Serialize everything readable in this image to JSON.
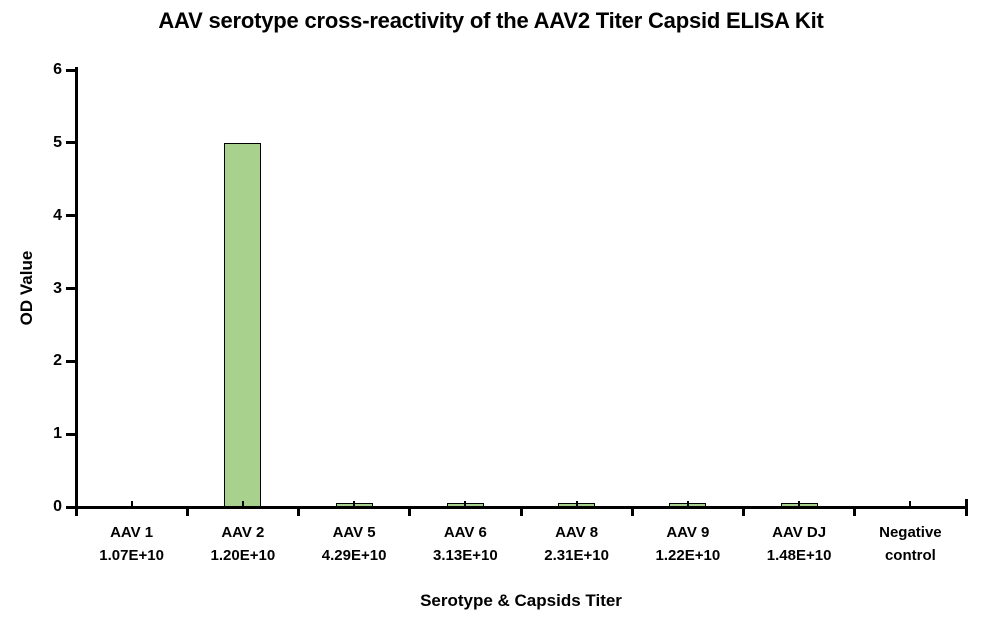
{
  "page": {
    "background": "#ffffff"
  },
  "chart_data": {
    "type": "bar",
    "title": "AAV serotype cross-reactivity of the AAV2 Titer Capsid ELISA Kit",
    "xlabel": "Serotype & Capsids Titer",
    "ylabel": "OD Value",
    "ylim": [
      0,
      6
    ],
    "yticks": [
      0,
      1,
      2,
      3,
      4,
      5,
      6
    ],
    "grid": false,
    "legend": "none",
    "bar_fill": "#A9D18E",
    "bar_border": "#000000",
    "axis_color": "#000000",
    "text_color": "#000000",
    "categories": [
      {
        "label_lines": [
          "AAV 1",
          "1.07E+10"
        ],
        "od_value": 0.0
      },
      {
        "label_lines": [
          "AAV 2",
          "1.20E+10"
        ],
        "od_value": 5.0
      },
      {
        "label_lines": [
          "AAV 5",
          "4.29E+10"
        ],
        "od_value": 0.02
      },
      {
        "label_lines": [
          "AAV 6",
          "3.13E+10"
        ],
        "od_value": 0.02
      },
      {
        "label_lines": [
          "AAV 8",
          "2.31E+10"
        ],
        "od_value": 0.02
      },
      {
        "label_lines": [
          "AAV 9",
          "1.22E+10"
        ],
        "od_value": 0.02
      },
      {
        "label_lines": [
          "AAV DJ",
          "1.48E+10"
        ],
        "od_value": 0.02
      },
      {
        "label_lines": [
          "Negative",
          "control"
        ],
        "od_value": 0.0
      }
    ]
  }
}
